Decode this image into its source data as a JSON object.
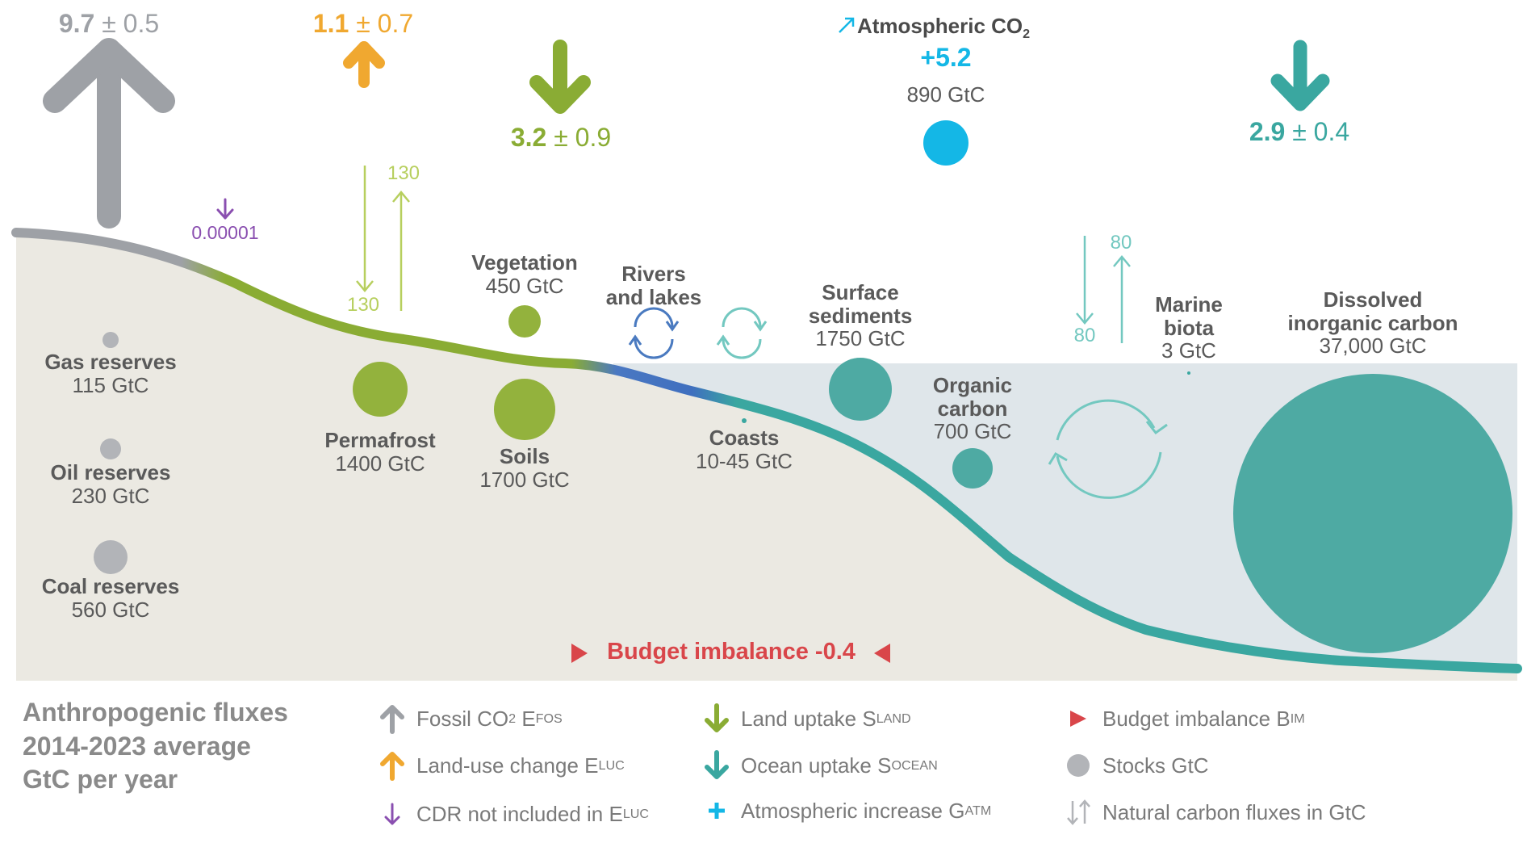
{
  "colors": {
    "fossil": "#9ea1a6",
    "land_use": "#f0a830",
    "cdr": "#8a4fb0",
    "land": "#8aac34",
    "ocean": "#3aa7a0",
    "atmosphere": "#14b7e6",
    "imbalance": "#d9464a",
    "stock_grey": "#b2b4b8",
    "land_stock": "#93b23d",
    "ocean_stock": "#4eaaa3",
    "natural_land": "#b7cf5e",
    "natural_ocean": "#73c8c0"
  },
  "fluxes": {
    "fossil": {
      "value": "9.7",
      "unc": "± 0.5"
    },
    "land_use": {
      "value": "1.1",
      "unc": "± 0.7"
    },
    "land_uptake": {
      "value": "3.2",
      "unc": "± 0.9"
    },
    "ocean_uptake": {
      "value": "2.9",
      "unc": "± 0.4"
    },
    "cdr": {
      "value": "0.00001"
    },
    "atmosphere": {
      "title": "Atmospheric CO",
      "title_sub": "2",
      "value": "+5.2",
      "stock": "890 GtC"
    }
  },
  "natural": {
    "permafrost_down": "130",
    "permafrost_up": "130",
    "ocean_down": "80",
    "ocean_up": "80"
  },
  "stocks": {
    "gas": {
      "name": "Gas reserves",
      "value": "115 GtC"
    },
    "oil": {
      "name": "Oil reserves",
      "value": "230 GtC"
    },
    "coal": {
      "name": "Coal reserves",
      "value": "560 GtC"
    },
    "permafrost": {
      "name": "Permafrost",
      "value": "1400 GtC"
    },
    "soils": {
      "name": "Soils",
      "value": "1700 GtC"
    },
    "vegetation": {
      "name": "Vegetation",
      "value": "450 GtC"
    },
    "rivers": {
      "name_line1": "Rivers",
      "name_line2": "and lakes"
    },
    "coasts": {
      "name": "Coasts",
      "value": "10-45 GtC"
    },
    "surface_sediments": {
      "name_line1": "Surface",
      "name_line2": "sediments",
      "value": "1750 GtC"
    },
    "organic_carbon": {
      "name_line1": "Organic",
      "name_line2": "carbon",
      "value": "700 GtC"
    },
    "marine_biota": {
      "name_line1": "Marine",
      "name_line2": "biota",
      "value": "3 GtC"
    },
    "dic": {
      "name_line1": "Dissolved",
      "name_line2": "inorganic carbon",
      "value": "37,000 GtC"
    }
  },
  "budget_imbalance": "Budget imbalance -0.4",
  "legend": {
    "title_line1": "Anthropogenic fluxes",
    "title_line2": "2014-2023 average",
    "title_line3": "GtC per year",
    "fossil": {
      "text": "Fossil CO",
      "sub1": "2",
      "text2": " E",
      "sub2": "FOS"
    },
    "land_use": {
      "text": "Land-use change E",
      "sub": "LUC"
    },
    "cdr": {
      "text": "CDR not included in E",
      "sub": "LUC"
    },
    "land": {
      "text": "Land uptake S",
      "sub": "LAND"
    },
    "ocean": {
      "text": "Ocean uptake S",
      "sub": "OCEAN"
    },
    "atmosphere": {
      "text": "Atmospheric increase G",
      "sub": "ATM"
    },
    "imbalance": {
      "text": "Budget imbalance B",
      "sub": "IM"
    },
    "stocks": {
      "text": "Stocks GtC"
    },
    "natural": {
      "text": "Natural carbon fluxes in GtC"
    }
  }
}
